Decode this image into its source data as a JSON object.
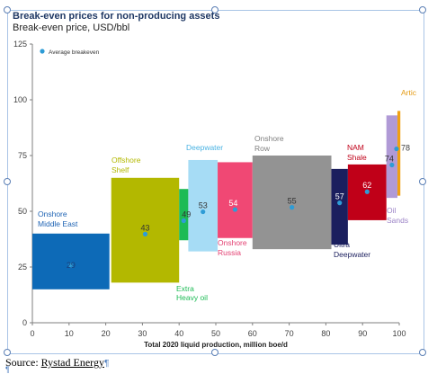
{
  "document": {
    "title": "Break-even prices for non-producing assets",
    "subtitle": "Break-even price, USD/bbl",
    "source_label": "Source: ",
    "source_name": "Rystad Energy",
    "pilcrow": "¶"
  },
  "chart_data": {
    "type": "bar",
    "xlabel": "Total 2020 liquid production, million boe/d",
    "ylabel": "",
    "xlim": [
      0,
      100
    ],
    "ylim": [
      0,
      125
    ],
    "xticks": [
      0,
      10,
      20,
      30,
      40,
      50,
      60,
      70,
      80,
      90,
      100
    ],
    "yticks": [
      0,
      25,
      50,
      75,
      100,
      125
    ],
    "grid": false,
    "legend": {
      "label": "Average  breakeven",
      "placement": "top-left"
    },
    "series": [
      {
        "name": "Onshore Middle East",
        "x_start": 0,
        "x_end": 21,
        "low": 15,
        "high": 40,
        "average": 29,
        "color": "#0d6ab7",
        "label_color": "#1f64b4",
        "label_side": "top-left"
      },
      {
        "name": "Offshore Shelf",
        "x_start": 21.5,
        "x_end": 40,
        "low": 18,
        "high": 65,
        "average": 43,
        "color": "#b3b800",
        "label_color": "#b3b800",
        "label_side": "top-left"
      },
      {
        "name": "Extra Heavy oil",
        "x_start": 40,
        "x_end": 42.5,
        "low": 37,
        "high": 60,
        "average": 49,
        "color": "#1dbb55",
        "label_color": "#1dbb55",
        "label_side": "bottom"
      },
      {
        "name": "Deepwater",
        "x_start": 42.5,
        "x_end": 50.5,
        "low": 32,
        "high": 73,
        "average": 53,
        "color": "#a6dcf5",
        "label_color": "#4ab3e3",
        "label_side": "top-left"
      },
      {
        "name": "Onshore Russia",
        "x_start": 50.5,
        "x_end": 60,
        "low": 38,
        "high": 72,
        "average": 54,
        "color": "#f04874",
        "label_color": "#e34072",
        "label_side": "bottom"
      },
      {
        "name": "Onshore Row",
        "x_start": 60,
        "x_end": 81.5,
        "low": 33,
        "high": 75,
        "average": 55,
        "color": "#939393",
        "label_color": "#7f7f7f",
        "label_side": "top-left"
      },
      {
        "name": "Ultra Deepwater",
        "x_start": 81.5,
        "x_end": 86,
        "low": 35,
        "high": 69,
        "average": 57,
        "color": "#1b1f5e",
        "label_color": "#1b1f5e",
        "label_side": "bottom"
      },
      {
        "name": "NAM Shale",
        "x_start": 86,
        "x_end": 96.5,
        "low": 46,
        "high": 71,
        "average": 62,
        "color": "#c00018",
        "label_color": "#c00018",
        "label_side": "top"
      },
      {
        "name": "Oil Sands",
        "x_start": 96.5,
        "x_end": 99.5,
        "low": 56,
        "high": 93,
        "average": 74,
        "color": "#b09ad6",
        "label_color": "#9c84c7",
        "label_side": "bottom"
      },
      {
        "name": "Artic",
        "x_start": 99.5,
        "x_end": 100.3,
        "low": 57,
        "high": 95,
        "average": 78,
        "color": "#f0a015",
        "label_color": "#e49a11",
        "label_side": "top"
      }
    ]
  }
}
